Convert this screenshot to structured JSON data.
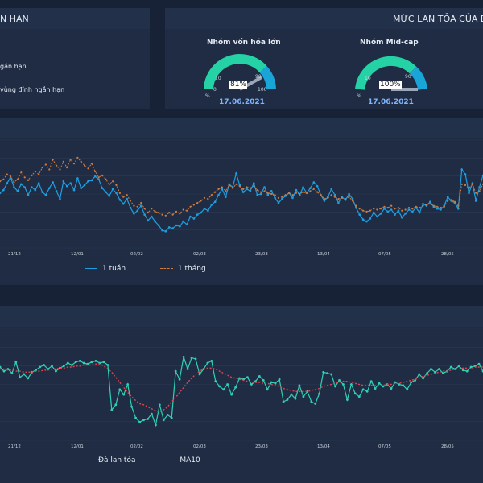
{
  "panel_left": {
    "title": "N HẠN",
    "items": [
      "gắn hạn",
      "vùng đỉnh ngắn hạn"
    ]
  },
  "panel_right": {
    "title": "MỨC LAN TỎA CỦA D",
    "gauges": [
      {
        "title": "Nhóm vốn hóa lớn",
        "value": 81,
        "value_label": "81%",
        "date": "17.06.2021",
        "ticks": [
          "0",
          "10",
          "90",
          "100"
        ],
        "unit": "%"
      },
      {
        "title": "Nhóm Mid-cap",
        "value": 100,
        "value_label": "100%",
        "date": "17.06.2021",
        "ticks": [
          "10",
          "90"
        ],
        "unit": "%"
      }
    ]
  },
  "colors": {
    "bg": "#172236",
    "panel": "#1f2c43",
    "blue": "#1e9ee0",
    "orange": "#d07a3d",
    "teal": "#2fd1b6",
    "red": "#e0434c",
    "gauge_green": "#25d2a6",
    "gauge_blue": "#1aa5d9"
  },
  "chart_data": [
    {
      "type": "line",
      "x_ticks": [
        "21/12",
        "12/01",
        "02/02",
        "02/03",
        "23/03",
        "13/04",
        "07/05",
        "28/05"
      ],
      "series": [
        {
          "name": "1 tuần",
          "values": [
            46,
            49,
            56,
            62,
            52,
            48,
            55,
            52,
            44,
            52,
            49,
            56,
            47,
            44,
            51,
            57,
            48,
            40,
            58,
            53,
            56,
            49,
            61,
            51,
            54,
            58,
            59,
            63,
            60,
            51,
            47,
            43,
            50,
            46,
            39,
            35,
            40,
            31,
            25,
            28,
            33,
            24,
            18,
            22,
            17,
            13,
            8,
            7,
            11,
            10,
            13,
            12,
            17,
            14,
            22,
            20,
            24,
            26,
            30,
            28,
            34,
            37,
            44,
            50,
            42,
            55,
            52,
            66,
            54,
            47,
            50,
            48,
            56,
            44,
            45,
            52,
            44,
            48,
            41,
            36,
            40,
            43,
            46,
            41,
            49,
            44,
            52,
            46,
            51,
            57,
            53,
            44,
            38,
            42,
            50,
            44,
            36,
            42,
            39,
            45,
            40,
            31,
            24,
            19,
            17,
            20,
            26,
            22,
            25,
            30,
            27,
            29,
            24,
            28,
            21,
            25,
            29,
            27,
            31,
            26,
            35,
            33,
            37,
            32,
            30,
            29,
            33,
            42,
            38,
            36,
            30,
            70,
            65,
            46,
            56,
            38,
            52,
            64
          ]
        },
        {
          "name": "1 tháng",
          "values": [
            58,
            60,
            65,
            63,
            57,
            60,
            67,
            62,
            59,
            64,
            68,
            65,
            72,
            75,
            70,
            80,
            74,
            70,
            78,
            72,
            80,
            76,
            82,
            78,
            74,
            71,
            76,
            68,
            62,
            64,
            60,
            55,
            58,
            54,
            46,
            42,
            44,
            38,
            33,
            32,
            36,
            30,
            26,
            30,
            27,
            26,
            24,
            23,
            26,
            24,
            27,
            25,
            29,
            28,
            32,
            34,
            36,
            38,
            41,
            40,
            44,
            47,
            50,
            52,
            48,
            54,
            51,
            55,
            53,
            50,
            52,
            51,
            53,
            49,
            47,
            48,
            46,
            45,
            44,
            41,
            42,
            44,
            46,
            44,
            46,
            45,
            47,
            46,
            48,
            50,
            47,
            44,
            40,
            41,
            44,
            42,
            40,
            41,
            40,
            42,
            38,
            33,
            30,
            28,
            27,
            28,
            30,
            29,
            30,
            32,
            31,
            33,
            30,
            31,
            28,
            29,
            31,
            30,
            32,
            31,
            33,
            34,
            35,
            33,
            32,
            31,
            32,
            38,
            39,
            37,
            33,
            55,
            54,
            51,
            55,
            46,
            48,
            55
          ]
        }
      ]
    },
    {
      "type": "line",
      "x_ticks": [
        "21/12",
        "12/01",
        "02/02",
        "02/03",
        "23/03",
        "13/04",
        "07/05",
        "28/05"
      ],
      "series": [
        {
          "name": "Đà lan tỏa",
          "values": [
            62,
            58,
            60,
            56,
            67,
            52,
            55,
            51,
            57,
            59,
            62,
            64,
            60,
            63,
            58,
            61,
            63,
            66,
            64,
            67,
            68,
            66,
            65,
            67,
            68,
            66,
            67,
            64,
            20,
            25,
            40,
            35,
            45,
            23,
            12,
            8,
            10,
            11,
            16,
            5,
            25,
            10,
            15,
            12,
            58,
            50,
            72,
            60,
            71,
            70,
            55,
            60,
            66,
            68,
            48,
            43,
            40,
            45,
            35,
            42,
            51,
            50,
            52,
            45,
            48,
            53,
            49,
            40,
            47,
            46,
            50,
            28,
            30,
            35,
            31,
            44,
            33,
            38,
            28,
            26,
            36,
            57,
            56,
            55,
            43,
            49,
            45,
            30,
            45,
            36,
            33,
            40,
            38,
            48,
            41,
            46,
            43,
            45,
            41,
            47,
            45,
            44,
            40,
            47,
            49,
            55,
            51,
            56,
            60,
            57,
            60,
            56,
            58,
            62,
            60,
            63,
            59,
            58,
            62,
            63,
            65,
            58
          ]
        },
        {
          "name": "MA10",
          "values": [
            60,
            60,
            59,
            59,
            58,
            58,
            57,
            57,
            57,
            58,
            58,
            59,
            59,
            60,
            60,
            61,
            61,
            62,
            62,
            63,
            63,
            64,
            64,
            64,
            65,
            65,
            63,
            60,
            57,
            52,
            47,
            42,
            37,
            33,
            29,
            26,
            25,
            23,
            21,
            19,
            18,
            20,
            23,
            28,
            32,
            37,
            42,
            47,
            51,
            55,
            58,
            60,
            61,
            61,
            60,
            58,
            56,
            54,
            52,
            51,
            50,
            49,
            48,
            47,
            47,
            47,
            46,
            46,
            45,
            44,
            43,
            41,
            40,
            39,
            38,
            38,
            38,
            38,
            39,
            40,
            41,
            43,
            44,
            45,
            46,
            47,
            48,
            48,
            47,
            46,
            45,
            44,
            44,
            44,
            44,
            44,
            44,
            45,
            45,
            46,
            46,
            47,
            48,
            49,
            50,
            51,
            53,
            54,
            55,
            56,
            57,
            58,
            58,
            59,
            60,
            60,
            61,
            61,
            61,
            62,
            62,
            62
          ]
        }
      ]
    }
  ]
}
